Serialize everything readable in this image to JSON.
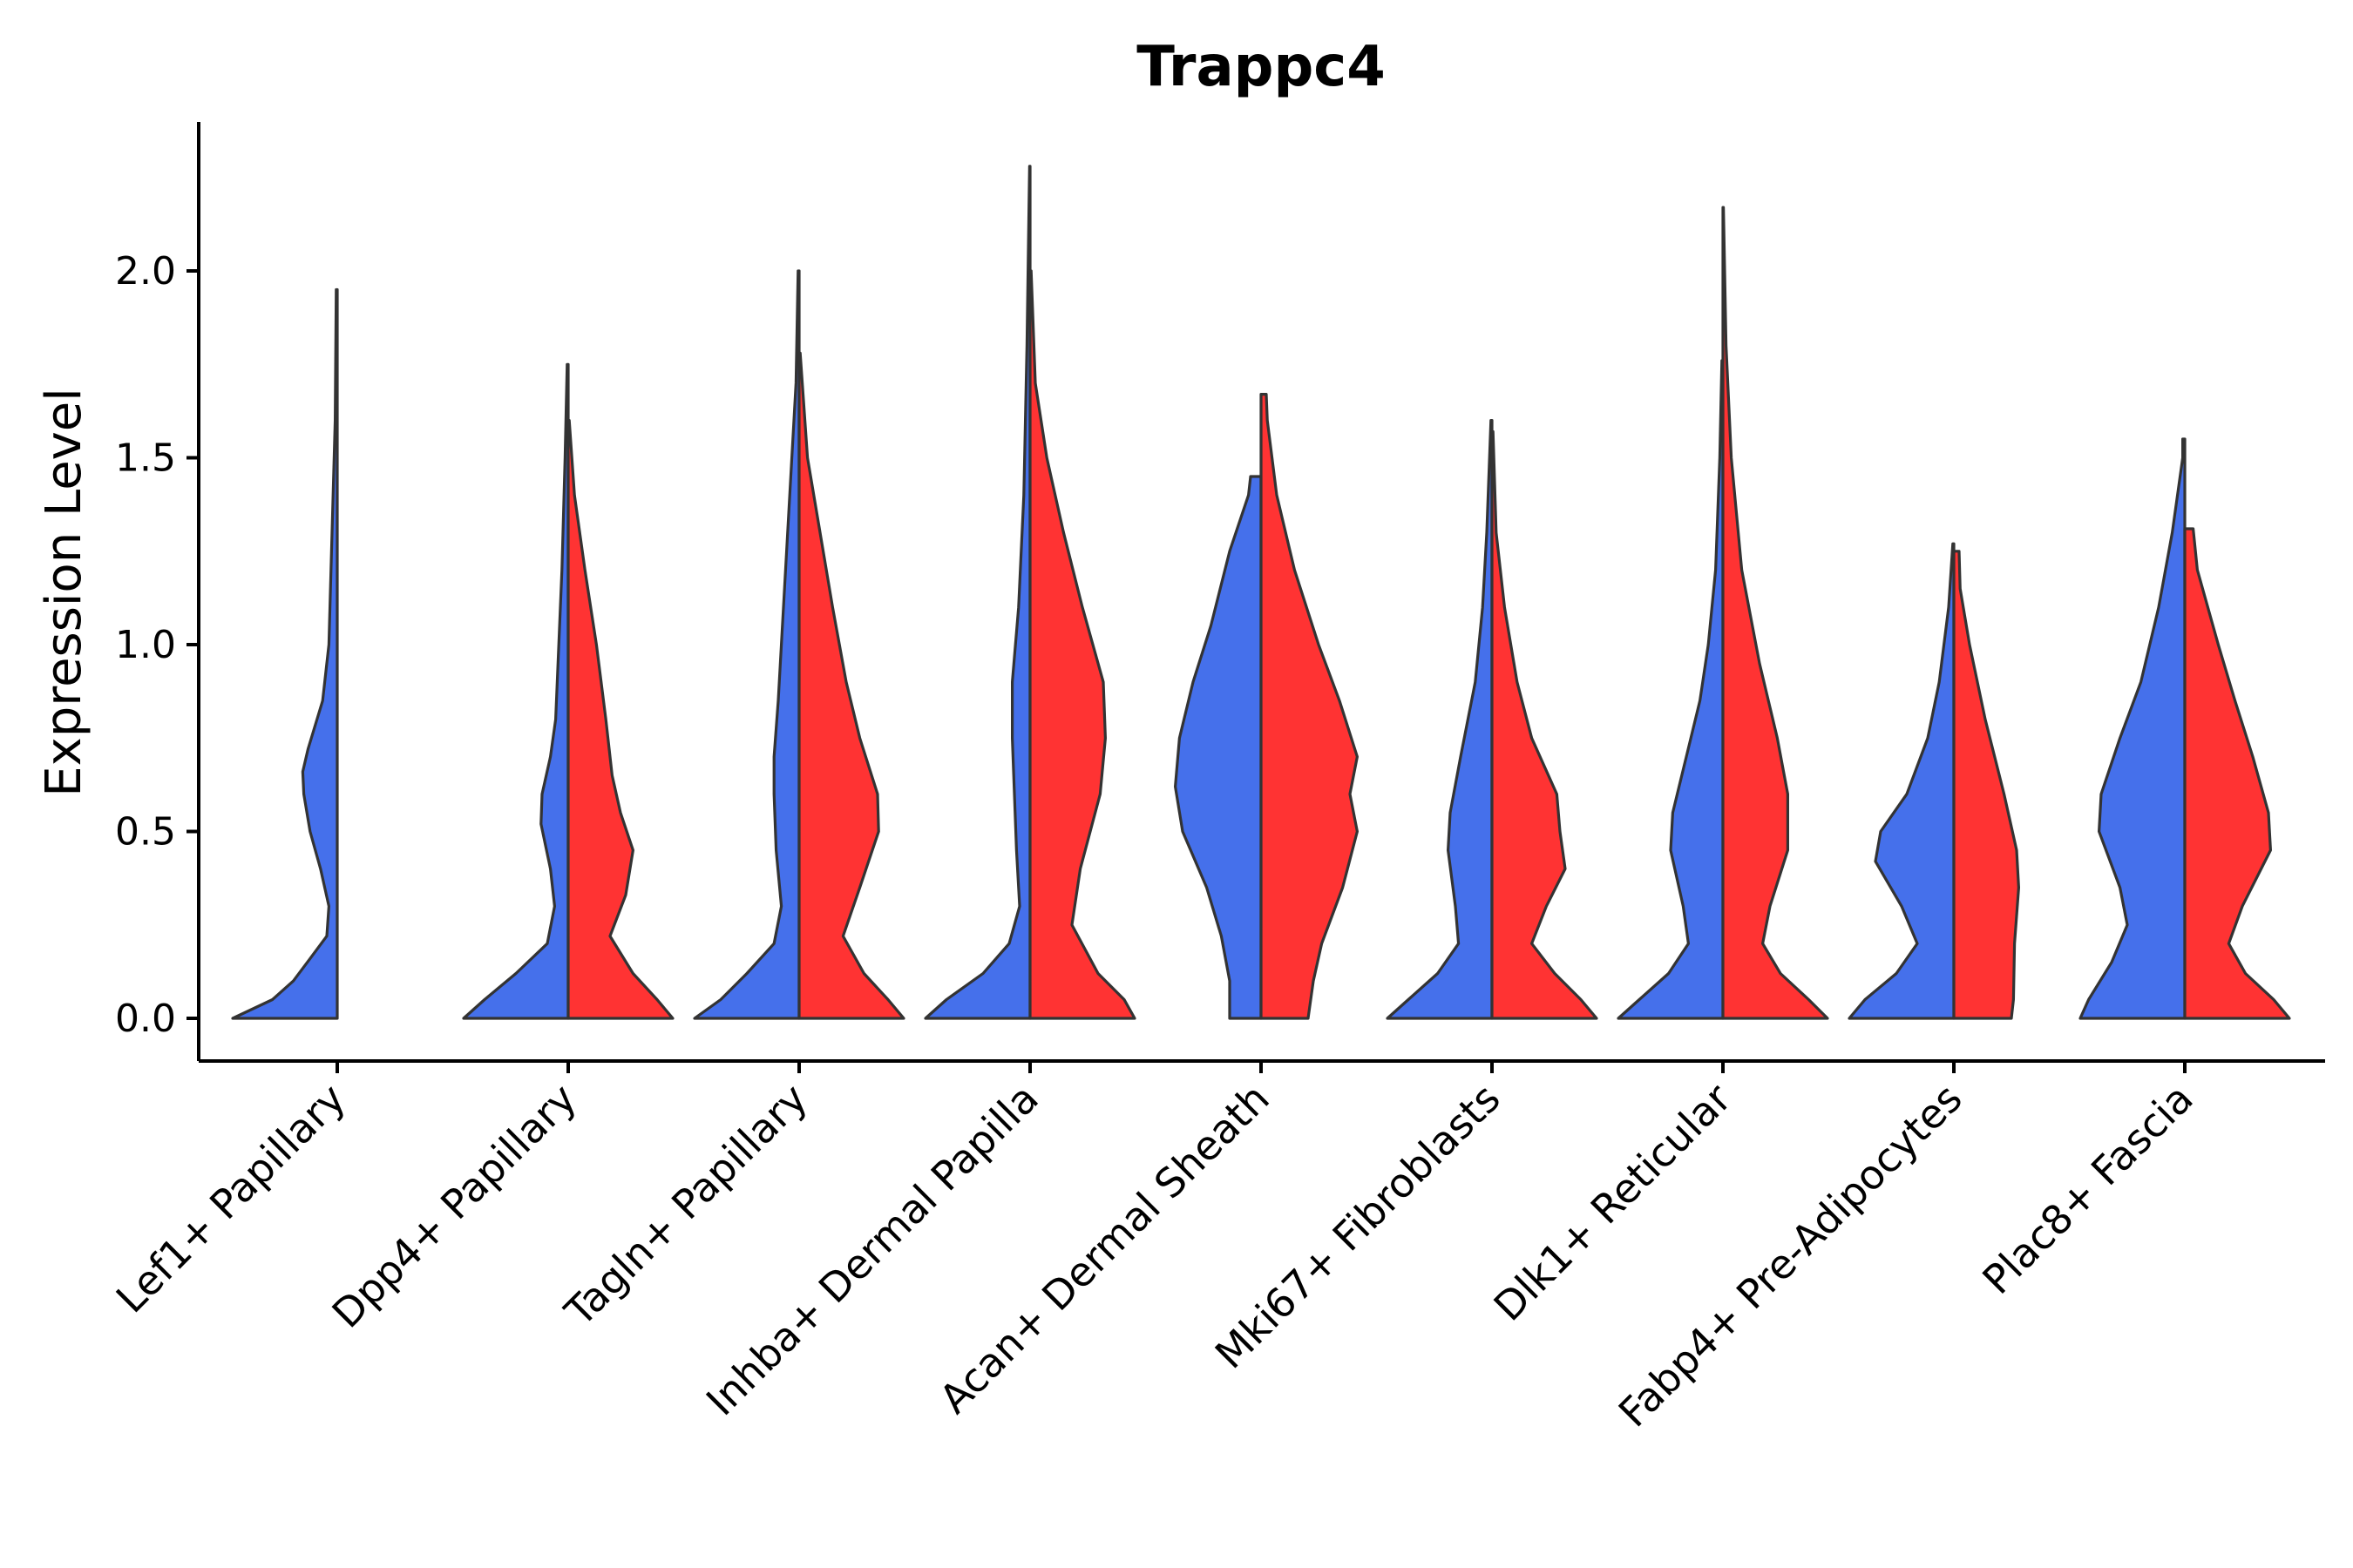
{
  "chart_data": {
    "type": "violin",
    "title": "Trappc4",
    "xlabel": "",
    "ylabel": "Expression Level",
    "ylim": [
      -0.12,
      2.4
    ],
    "yticks": [
      0.0,
      0.5,
      1.0,
      1.5,
      2.0
    ],
    "ytick_labels": [
      "0.0",
      "0.5",
      "1.0",
      "1.5",
      "2.0"
    ],
    "categories": [
      "Lef1+ Papillary",
      "Dpp4+ Papillary",
      "Tagln+ Papillary",
      "Inhba+ Dermal Papilla",
      "Acan+ Dermal Sheath",
      "Mki67+ Fibroblasts",
      "Dlk1+ Reticular",
      "Fabp4+ Pre-Adipocytes",
      "Plac8+ Fascia"
    ],
    "series_colors": {
      "group_1": "#4570EB",
      "group_2": "#FF3333"
    },
    "outline_color": "#333333",
    "violins": [
      {
        "category": 0,
        "side": "left",
        "group": 1,
        "max": 1.95,
        "profile": [
          [
            0.0,
            1.0
          ],
          [
            0.05,
            0.62
          ],
          [
            0.1,
            0.42
          ],
          [
            0.16,
            0.26
          ],
          [
            0.22,
            0.1
          ],
          [
            0.3,
            0.08
          ],
          [
            0.4,
            0.16
          ],
          [
            0.5,
            0.26
          ],
          [
            0.6,
            0.32
          ],
          [
            0.66,
            0.33
          ],
          [
            0.72,
            0.28
          ],
          [
            0.85,
            0.14
          ],
          [
            1.0,
            0.08
          ],
          [
            1.3,
            0.05
          ],
          [
            1.6,
            0.02
          ],
          [
            1.95,
            0.01
          ]
        ]
      },
      {
        "category": 1,
        "side": "left",
        "group": 1,
        "max": 1.75,
        "profile": [
          [
            0.0,
            1.0
          ],
          [
            0.05,
            0.8
          ],
          [
            0.12,
            0.5
          ],
          [
            0.2,
            0.2
          ],
          [
            0.3,
            0.13
          ],
          [
            0.4,
            0.17
          ],
          [
            0.52,
            0.26
          ],
          [
            0.6,
            0.25
          ],
          [
            0.7,
            0.17
          ],
          [
            0.8,
            0.12
          ],
          [
            1.0,
            0.09
          ],
          [
            1.2,
            0.06
          ],
          [
            1.5,
            0.03
          ],
          [
            1.75,
            0.01
          ]
        ]
      },
      {
        "category": 1,
        "side": "right",
        "group": 2,
        "max": 1.6,
        "profile": [
          [
            0.0,
            1.0
          ],
          [
            0.05,
            0.85
          ],
          [
            0.12,
            0.62
          ],
          [
            0.22,
            0.4
          ],
          [
            0.33,
            0.55
          ],
          [
            0.45,
            0.62
          ],
          [
            0.55,
            0.5
          ],
          [
            0.65,
            0.42
          ],
          [
            0.8,
            0.36
          ],
          [
            1.0,
            0.27
          ],
          [
            1.2,
            0.16
          ],
          [
            1.4,
            0.06
          ],
          [
            1.6,
            0.01
          ]
        ]
      },
      {
        "category": 2,
        "side": "left",
        "group": 1,
        "max": 2.0,
        "profile": [
          [
            0.0,
            1.0
          ],
          [
            0.05,
            0.75
          ],
          [
            0.12,
            0.5
          ],
          [
            0.2,
            0.24
          ],
          [
            0.3,
            0.17
          ],
          [
            0.45,
            0.22
          ],
          [
            0.6,
            0.24
          ],
          [
            0.7,
            0.24
          ],
          [
            0.85,
            0.2
          ],
          [
            1.0,
            0.17
          ],
          [
            1.2,
            0.13
          ],
          [
            1.5,
            0.07
          ],
          [
            1.7,
            0.03
          ],
          [
            2.0,
            0.01
          ]
        ]
      },
      {
        "category": 2,
        "side": "right",
        "group": 2,
        "max": 1.78,
        "profile": [
          [
            0.0,
            1.0
          ],
          [
            0.05,
            0.85
          ],
          [
            0.12,
            0.62
          ],
          [
            0.22,
            0.42
          ],
          [
            0.35,
            0.58
          ],
          [
            0.5,
            0.76
          ],
          [
            0.6,
            0.75
          ],
          [
            0.75,
            0.58
          ],
          [
            0.9,
            0.45
          ],
          [
            1.1,
            0.32
          ],
          [
            1.3,
            0.2
          ],
          [
            1.5,
            0.08
          ],
          [
            1.78,
            0.01
          ]
        ]
      },
      {
        "category": 3,
        "side": "left",
        "group": 1,
        "max": 2.28,
        "profile": [
          [
            0.0,
            1.0
          ],
          [
            0.05,
            0.8
          ],
          [
            0.12,
            0.45
          ],
          [
            0.2,
            0.2
          ],
          [
            0.3,
            0.1
          ],
          [
            0.45,
            0.13
          ],
          [
            0.6,
            0.15
          ],
          [
            0.75,
            0.17
          ],
          [
            0.9,
            0.17
          ],
          [
            1.1,
            0.11
          ],
          [
            1.4,
            0.06
          ],
          [
            1.8,
            0.03
          ],
          [
            2.28,
            0.005
          ]
        ]
      },
      {
        "category": 3,
        "side": "right",
        "group": 2,
        "max": 2.0,
        "profile": [
          [
            0.0,
            1.0
          ],
          [
            0.05,
            0.9
          ],
          [
            0.12,
            0.65
          ],
          [
            0.25,
            0.4
          ],
          [
            0.4,
            0.48
          ],
          [
            0.6,
            0.67
          ],
          [
            0.75,
            0.72
          ],
          [
            0.9,
            0.7
          ],
          [
            1.1,
            0.5
          ],
          [
            1.3,
            0.32
          ],
          [
            1.5,
            0.16
          ],
          [
            1.7,
            0.05
          ],
          [
            2.0,
            0.01
          ]
        ]
      },
      {
        "category": 4,
        "side": "left",
        "group": 1,
        "max": 1.45,
        "profile": [
          [
            0.0,
            0.3
          ],
          [
            0.1,
            0.3
          ],
          [
            0.22,
            0.38
          ],
          [
            0.35,
            0.52
          ],
          [
            0.5,
            0.75
          ],
          [
            0.62,
            0.82
          ],
          [
            0.75,
            0.78
          ],
          [
            0.9,
            0.65
          ],
          [
            1.05,
            0.48
          ],
          [
            1.25,
            0.3
          ],
          [
            1.4,
            0.12
          ],
          [
            1.45,
            0.1
          ]
        ]
      },
      {
        "category": 4,
        "side": "right",
        "group": 2,
        "max": 1.67,
        "profile": [
          [
            0.0,
            0.45
          ],
          [
            0.1,
            0.5
          ],
          [
            0.2,
            0.58
          ],
          [
            0.35,
            0.78
          ],
          [
            0.5,
            0.92
          ],
          [
            0.6,
            0.85
          ],
          [
            0.7,
            0.92
          ],
          [
            0.85,
            0.75
          ],
          [
            1.0,
            0.55
          ],
          [
            1.2,
            0.32
          ],
          [
            1.4,
            0.15
          ],
          [
            1.6,
            0.06
          ],
          [
            1.67,
            0.05
          ]
        ]
      },
      {
        "category": 5,
        "side": "left",
        "group": 1,
        "max": 1.6,
        "profile": [
          [
            0.0,
            1.0
          ],
          [
            0.05,
            0.8
          ],
          [
            0.12,
            0.52
          ],
          [
            0.2,
            0.32
          ],
          [
            0.3,
            0.35
          ],
          [
            0.45,
            0.42
          ],
          [
            0.55,
            0.4
          ],
          [
            0.7,
            0.3
          ],
          [
            0.9,
            0.16
          ],
          [
            1.1,
            0.09
          ],
          [
            1.3,
            0.05
          ],
          [
            1.6,
            0.01
          ]
        ]
      },
      {
        "category": 5,
        "side": "right",
        "group": 2,
        "max": 1.57,
        "profile": [
          [
            0.0,
            1.0
          ],
          [
            0.05,
            0.85
          ],
          [
            0.12,
            0.6
          ],
          [
            0.2,
            0.38
          ],
          [
            0.3,
            0.52
          ],
          [
            0.4,
            0.7
          ],
          [
            0.5,
            0.65
          ],
          [
            0.6,
            0.62
          ],
          [
            0.75,
            0.38
          ],
          [
            0.9,
            0.24
          ],
          [
            1.1,
            0.12
          ],
          [
            1.3,
            0.04
          ],
          [
            1.57,
            0.01
          ]
        ]
      },
      {
        "category": 6,
        "side": "left",
        "group": 1,
        "max": 1.76,
        "profile": [
          [
            0.0,
            1.0
          ],
          [
            0.05,
            0.8
          ],
          [
            0.12,
            0.52
          ],
          [
            0.2,
            0.33
          ],
          [
            0.3,
            0.38
          ],
          [
            0.45,
            0.5
          ],
          [
            0.55,
            0.48
          ],
          [
            0.7,
            0.35
          ],
          [
            0.85,
            0.22
          ],
          [
            1.0,
            0.14
          ],
          [
            1.2,
            0.07
          ],
          [
            1.5,
            0.03
          ],
          [
            1.76,
            0.01
          ]
        ]
      },
      {
        "category": 6,
        "side": "right",
        "group": 2,
        "max": 2.17,
        "profile": [
          [
            0.0,
            1.0
          ],
          [
            0.05,
            0.82
          ],
          [
            0.12,
            0.55
          ],
          [
            0.2,
            0.38
          ],
          [
            0.3,
            0.45
          ],
          [
            0.45,
            0.62
          ],
          [
            0.6,
            0.62
          ],
          [
            0.75,
            0.52
          ],
          [
            0.95,
            0.35
          ],
          [
            1.2,
            0.18
          ],
          [
            1.5,
            0.08
          ],
          [
            1.8,
            0.03
          ],
          [
            2.17,
            0.005
          ]
        ]
      },
      {
        "category": 7,
        "side": "left",
        "group": 1,
        "max": 1.27,
        "profile": [
          [
            0.0,
            1.0
          ],
          [
            0.05,
            0.85
          ],
          [
            0.12,
            0.55
          ],
          [
            0.2,
            0.35
          ],
          [
            0.3,
            0.5
          ],
          [
            0.42,
            0.75
          ],
          [
            0.5,
            0.7
          ],
          [
            0.6,
            0.45
          ],
          [
            0.75,
            0.25
          ],
          [
            0.9,
            0.14
          ],
          [
            1.1,
            0.05
          ],
          [
            1.27,
            0.01
          ]
        ]
      },
      {
        "category": 7,
        "side": "right",
        "group": 2,
        "max": 1.25,
        "profile": [
          [
            0.0,
            0.55
          ],
          [
            0.05,
            0.57
          ],
          [
            0.2,
            0.58
          ],
          [
            0.35,
            0.62
          ],
          [
            0.45,
            0.6
          ],
          [
            0.6,
            0.48
          ],
          [
            0.8,
            0.3
          ],
          [
            1.0,
            0.15
          ],
          [
            1.15,
            0.06
          ],
          [
            1.25,
            0.05
          ]
        ]
      },
      {
        "category": 8,
        "side": "left",
        "group": 1,
        "max": 1.55,
        "profile": [
          [
            0.0,
            1.0
          ],
          [
            0.05,
            0.92
          ],
          [
            0.15,
            0.7
          ],
          [
            0.25,
            0.55
          ],
          [
            0.35,
            0.62
          ],
          [
            0.5,
            0.82
          ],
          [
            0.6,
            0.8
          ],
          [
            0.75,
            0.62
          ],
          [
            0.9,
            0.42
          ],
          [
            1.1,
            0.25
          ],
          [
            1.3,
            0.12
          ],
          [
            1.5,
            0.02
          ],
          [
            1.55,
            0.02
          ]
        ]
      },
      {
        "category": 8,
        "side": "right",
        "group": 2,
        "max": 1.31,
        "profile": [
          [
            0.0,
            1.0
          ],
          [
            0.05,
            0.85
          ],
          [
            0.12,
            0.58
          ],
          [
            0.2,
            0.42
          ],
          [
            0.3,
            0.55
          ],
          [
            0.45,
            0.82
          ],
          [
            0.55,
            0.8
          ],
          [
            0.7,
            0.65
          ],
          [
            0.85,
            0.48
          ],
          [
            1.0,
            0.32
          ],
          [
            1.2,
            0.12
          ],
          [
            1.31,
            0.08
          ]
        ]
      }
    ]
  }
}
